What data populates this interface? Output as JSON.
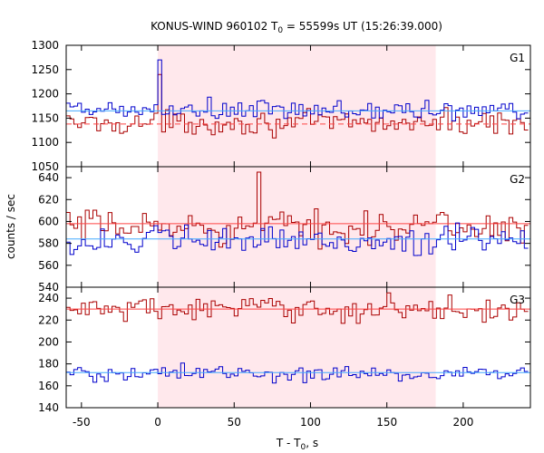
{
  "chart_data": {
    "type": "line",
    "title_main": "KONUS-WIND 960102 T",
    "title_sub": "0",
    "title_rest": " = 55599s UT (15:26:39.000)",
    "xlabel_main": "T - T",
    "xlabel_sub": "0",
    "xlabel_rest": ", s",
    "ylabel": "counts / sec",
    "xlim": [
      -60,
      244
    ],
    "x_ticks": [
      -50,
      0,
      50,
      100,
      150,
      200
    ],
    "x_tick_labels": [
      "-50",
      "0",
      "50",
      "100",
      "150",
      "200"
    ],
    "highlight_interval": [
      0,
      182
    ],
    "colors": {
      "series_a": "#aa0000",
      "series_b": "#0000cc",
      "fit_a": "#ff4444",
      "fit_b": "#44aaff",
      "shade": "#ffe8ec",
      "shade_edge": "#ffc0cc"
    },
    "panels": [
      {
        "label": "G1",
        "ylim": [
          1050,
          1300
        ],
        "y_ticks": [
          1050,
          1100,
          1150,
          1200,
          1250,
          1300
        ],
        "y_tick_labels": [
          "1050",
          "1100",
          "1150",
          "1200",
          "1250",
          "1300"
        ],
        "series": [
          {
            "base": 1140,
            "amp": 20,
            "fit": 1138,
            "fit_style": "dashed",
            "spike_at": 2,
            "spike_value": 1240
          },
          {
            "base": 1165,
            "amp": 20,
            "fit": 1165,
            "fit_style": "solid",
            "spike_at": 0,
            "spike_value": 1270
          }
        ]
      },
      {
        "label": "G2",
        "ylim": [
          540,
          650
        ],
        "y_ticks": [
          540,
          560,
          580,
          600,
          620,
          640
        ],
        "y_tick_labels": [
          "540",
          "560",
          "580",
          "600",
          "620",
          "640"
        ],
        "series": [
          {
            "base": 595,
            "amp": 13,
            "fit": 598,
            "fit_style": "solid",
            "spike_at": 67,
            "spike_value": 645
          },
          {
            "base": 582,
            "amp": 12,
            "fit": 584,
            "fit_style": "solid",
            "spike_at": null,
            "spike_value": null
          }
        ]
      },
      {
        "label": "G3",
        "ylim": [
          140,
          250
        ],
        "y_ticks": [
          140,
          160,
          180,
          200,
          220,
          240
        ],
        "y_tick_labels": [
          "140",
          "160",
          "180",
          "200",
          "220",
          "240"
        ],
        "series": [
          {
            "base": 230,
            "amp": 10,
            "fit": 230,
            "fit_style": "solid",
            "spike_at": null,
            "spike_value": null
          },
          {
            "base": 171,
            "amp": 7,
            "fit": 172,
            "fit_style": "solid",
            "spike_at": null,
            "spike_value": null
          }
        ]
      }
    ]
  }
}
